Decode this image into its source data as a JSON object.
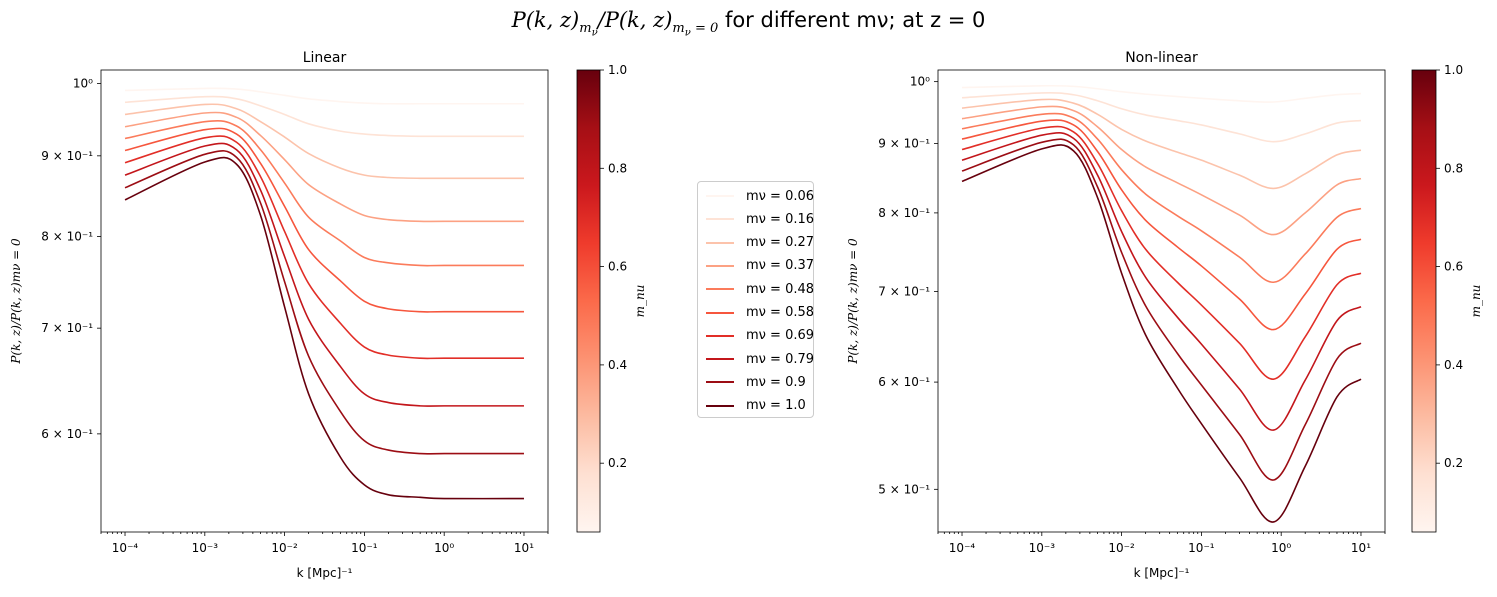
{
  "suptitle": {
    "quantity_ratio": "P(k, z)mν/P(k, z)mν = 0",
    "text": "for different mν; at z = 0"
  },
  "colorbar": {
    "label": "m_nu",
    "ticks": [
      "0.2",
      "0.4",
      "0.6",
      "0.8",
      "1.0"
    ],
    "range": [
      0.06,
      1.0
    ],
    "colormap": "Reds",
    "colors": [
      "#fff5f0",
      "#fee0d2",
      "#fcbba1",
      "#fc9272",
      "#fb6a4a",
      "#ef3b2c",
      "#cb181d",
      "#a50f15",
      "#67000d"
    ]
  },
  "legend": {
    "placement": "center",
    "entries": [
      "mν = 0.06",
      "mν = 0.16",
      "mν = 0.27",
      "mν = 0.37",
      "mν = 0.48",
      "mν = 0.58",
      "mν = 0.69",
      "mν = 0.79",
      "mν = 0.9",
      "mν = 1.0"
    ]
  },
  "chart_data": [
    {
      "type": "line",
      "title": "Linear",
      "xlabel": "k [Mpc]⁻¹",
      "ylabel": "P(k, z)/P(k, z)mν = 0",
      "xscale": "log",
      "yscale": "log",
      "xlim": [
        5e-05,
        20
      ],
      "ylim": [
        0.52,
        1.02
      ],
      "xticks": [
        0.0001,
        0.001,
        0.01,
        0.1,
        1,
        10
      ],
      "xtick_labels": [
        "10⁻⁴",
        "10⁻³",
        "10⁻²",
        "10⁻¹",
        "10⁰",
        "10¹"
      ],
      "yticks": [
        0.6,
        0.7,
        0.8,
        0.9,
        1.0
      ],
      "ytick_labels": [
        "6 × 10⁻¹",
        "7 × 10⁻¹",
        "8 × 10⁻¹",
        "9 × 10⁻¹",
        "10⁰"
      ],
      "grid": false,
      "x": [
        0.0001,
        0.001,
        0.0025,
        0.005,
        0.01,
        0.02,
        0.05,
        0.1,
        0.2,
        0.5,
        1,
        10
      ],
      "series": [
        {
          "mnu": 0.06,
          "values": [
            0.99,
            0.993,
            0.992,
            0.988,
            0.983,
            0.978,
            0.974,
            0.972,
            0.971,
            0.971,
            0.971,
            0.971
          ]
        },
        {
          "mnu": 0.16,
          "values": [
            0.973,
            0.981,
            0.978,
            0.968,
            0.956,
            0.943,
            0.933,
            0.929,
            0.927,
            0.926,
            0.926,
            0.926
          ]
        },
        {
          "mnu": 0.27,
          "values": [
            0.956,
            0.97,
            0.964,
            0.946,
            0.925,
            0.903,
            0.884,
            0.875,
            0.872,
            0.871,
            0.871,
            0.871
          ]
        },
        {
          "mnu": 0.37,
          "values": [
            0.939,
            0.958,
            0.952,
            0.927,
            0.895,
            0.863,
            0.839,
            0.825,
            0.82,
            0.818,
            0.818,
            0.818
          ]
        },
        {
          "mnu": 0.48,
          "values": [
            0.923,
            0.946,
            0.94,
            0.908,
            0.865,
            0.823,
            0.795,
            0.776,
            0.77,
            0.767,
            0.767,
            0.767
          ]
        },
        {
          "mnu": 0.58,
          "values": [
            0.907,
            0.935,
            0.929,
            0.89,
            0.836,
            0.785,
            0.75,
            0.728,
            0.72,
            0.717,
            0.717,
            0.717
          ]
        },
        {
          "mnu": 0.69,
          "values": [
            0.891,
            0.924,
            0.918,
            0.873,
            0.806,
            0.747,
            0.705,
            0.681,
            0.673,
            0.67,
            0.67,
            0.67
          ]
        },
        {
          "mnu": 0.79,
          "values": [
            0.875,
            0.913,
            0.908,
            0.856,
            0.777,
            0.709,
            0.662,
            0.636,
            0.628,
            0.625,
            0.625,
            0.625
          ]
        },
        {
          "mnu": 0.9,
          "values": [
            0.859,
            0.902,
            0.898,
            0.84,
            0.749,
            0.672,
            0.62,
            0.594,
            0.586,
            0.583,
            0.583,
            0.583
          ]
        },
        {
          "mnu": 1.0,
          "values": [
            0.844,
            0.892,
            0.889,
            0.825,
            0.722,
            0.636,
            0.58,
            0.557,
            0.549,
            0.547,
            0.546,
            0.546
          ]
        }
      ]
    },
    {
      "type": "line",
      "title": "Non-linear",
      "xlabel": "k [Mpc]⁻¹",
      "ylabel": "P(k, z)/P(k, z)mν = 0",
      "xscale": "log",
      "yscale": "log",
      "xlim": [
        5e-05,
        20
      ],
      "ylim": [
        0.465,
        1.02
      ],
      "xticks": [
        0.0001,
        0.001,
        0.01,
        0.1,
        1,
        10
      ],
      "xtick_labels": [
        "10⁻⁴",
        "10⁻³",
        "10⁻²",
        "10⁻¹",
        "10⁰",
        "10¹"
      ],
      "yticks": [
        0.5,
        0.6,
        0.7,
        0.8,
        0.9,
        1.0
      ],
      "ytick_labels": [
        "5 × 10⁻¹",
        "6 × 10⁻¹",
        "7 × 10⁻¹",
        "8 × 10⁻¹",
        "9 × 10⁻¹",
        "10⁰"
      ],
      "grid": false,
      "x": [
        0.0001,
        0.001,
        0.0025,
        0.005,
        0.01,
        0.02,
        0.05,
        0.1,
        0.3,
        0.8,
        2,
        5,
        10
      ],
      "series": [
        {
          "mnu": 0.06,
          "values": [
            0.99,
            0.993,
            0.992,
            0.988,
            0.983,
            0.979,
            0.975,
            0.972,
            0.968,
            0.966,
            0.972,
            0.978,
            0.98
          ]
        },
        {
          "mnu": 0.16,
          "values": [
            0.973,
            0.981,
            0.978,
            0.968,
            0.955,
            0.945,
            0.936,
            0.929,
            0.915,
            0.903,
            0.915,
            0.932,
            0.936
          ]
        },
        {
          "mnu": 0.27,
          "values": [
            0.956,
            0.97,
            0.964,
            0.946,
            0.922,
            0.904,
            0.887,
            0.875,
            0.853,
            0.834,
            0.855,
            0.883,
            0.89
          ]
        },
        {
          "mnu": 0.37,
          "values": [
            0.939,
            0.958,
            0.952,
            0.926,
            0.891,
            0.865,
            0.842,
            0.825,
            0.797,
            0.771,
            0.8,
            0.839,
            0.848
          ]
        },
        {
          "mnu": 0.48,
          "values": [
            0.923,
            0.946,
            0.94,
            0.907,
            0.861,
            0.826,
            0.796,
            0.776,
            0.742,
            0.711,
            0.746,
            0.794,
            0.806
          ]
        },
        {
          "mnu": 0.58,
          "values": [
            0.907,
            0.935,
            0.929,
            0.888,
            0.832,
            0.79,
            0.755,
            0.731,
            0.691,
            0.656,
            0.697,
            0.752,
            0.765
          ]
        },
        {
          "mnu": 0.69,
          "values": [
            0.891,
            0.924,
            0.918,
            0.87,
            0.803,
            0.752,
            0.711,
            0.684,
            0.641,
            0.603,
            0.648,
            0.708,
            0.722
          ]
        },
        {
          "mnu": 0.79,
          "values": [
            0.875,
            0.913,
            0.908,
            0.853,
            0.775,
            0.717,
            0.67,
            0.64,
            0.593,
            0.553,
            0.602,
            0.666,
            0.682
          ]
        },
        {
          "mnu": 0.9,
          "values": [
            0.859,
            0.902,
            0.898,
            0.836,
            0.748,
            0.683,
            0.63,
            0.597,
            0.549,
            0.508,
            0.558,
            0.624,
            0.641
          ]
        },
        {
          "mnu": 1.0,
          "values": [
            0.844,
            0.892,
            0.889,
            0.821,
            0.722,
            0.65,
            0.594,
            0.559,
            0.51,
            0.473,
            0.52,
            0.585,
            0.603
          ]
        }
      ]
    }
  ]
}
